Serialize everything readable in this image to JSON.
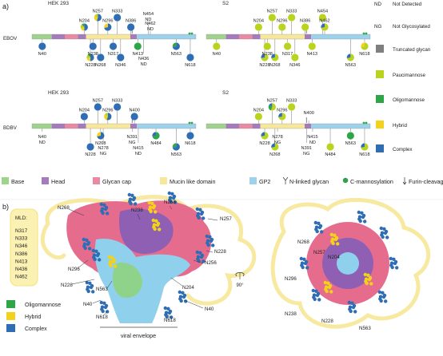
{
  "panel_a": {
    "label": "a)",
    "rows": [
      {
        "virus": "EBOV",
        "panels": [
          {
            "cell": "HEK 293",
            "sites": [
              {
                "id": "N40",
                "pos": "below",
                "pie": "C"
              },
              {
                "id": "N204",
                "pos": "above",
                "pie": "CHPO"
              },
              {
                "id": "N228",
                "pos": "below",
                "pie": "CHPO"
              },
              {
                "id": "N238",
                "pos": "below",
                "pie": "C"
              },
              {
                "id": "N257",
                "pos": "above",
                "pie": "CHP"
              },
              {
                "id": "N268",
                "pos": "below",
                "pie": "C"
              },
              {
                "id": "N296",
                "pos": "above",
                "pie": "CH"
              },
              {
                "id": "N317",
                "pos": "below",
                "pie": "C"
              },
              {
                "id": "N333",
                "pos": "above",
                "pie": "C"
              },
              {
                "id": "N346",
                "pos": "below",
                "pie": "C"
              },
              {
                "id": "N386",
                "pos": "above",
                "pie": "C"
              },
              {
                "id": "N413",
                "pos": "below",
                "pie": "O"
              },
              {
                "id": "N436",
                "pos": "below",
                "note": "ND"
              },
              {
                "id": "N454",
                "pos": "above",
                "note": "ND"
              },
              {
                "id": "N462",
                "pos": "above",
                "note": "ND"
              },
              {
                "id": "N563",
                "pos": "below",
                "pie": "CO"
              },
              {
                "id": "N618",
                "pos": "below",
                "pie": "C"
              }
            ]
          },
          {
            "cell": "S2",
            "sites": [
              {
                "id": "N40",
                "pos": "below",
                "pie": "P"
              },
              {
                "id": "N204",
                "pos": "above",
                "pie": "P"
              },
              {
                "id": "N228",
                "pos": "below",
                "pie": "PC"
              },
              {
                "id": "N238",
                "pos": "below",
                "pie": "P"
              },
              {
                "id": "N257",
                "pos": "above",
                "pie": "P"
              },
              {
                "id": "N268",
                "pos": "below",
                "pie": "PC"
              },
              {
                "id": "N296",
                "pos": "above",
                "pie": "P"
              },
              {
                "id": "N317",
                "pos": "below",
                "pie": "P"
              },
              {
                "id": "N333",
                "pos": "above",
                "pie": "P"
              },
              {
                "id": "N346",
                "pos": "below",
                "pie": "P"
              },
              {
                "id": "N386",
                "pos": "above",
                "pie": "P"
              },
              {
                "id": "N413",
                "pos": "below",
                "pie": "P"
              },
              {
                "id": "N454",
                "pos": "above",
                "pie": "P"
              },
              {
                "id": "N462",
                "pos": "above",
                "pie": "PC"
              },
              {
                "id": "N563",
                "pos": "below",
                "pie": "PC"
              },
              {
                "id": "N618",
                "pos": "below",
                "pie": "PH"
              }
            ]
          }
        ]
      },
      {
        "virus": "BDBV",
        "panels": [
          {
            "cell": "HEK 293",
            "sites": [
              {
                "id": "N40",
                "pos": "below",
                "note": "ND"
              },
              {
                "id": "N204",
                "pos": "above",
                "pie": "C"
              },
              {
                "id": "N228",
                "pos": "below",
                "pie": "C"
              },
              {
                "id": "N257",
                "pos": "above",
                "pie": "C"
              },
              {
                "id": "N268",
                "pos": "below",
                "pie": "CH"
              },
              {
                "id": "N278",
                "pos": "below",
                "note": "NG"
              },
              {
                "id": "N296",
                "pos": "above",
                "pie": "CHP"
              },
              {
                "id": "N333",
                "pos": "above",
                "pie": "C"
              },
              {
                "id": "N391",
                "pos": "below",
                "note": "NG"
              },
              {
                "id": "N400",
                "pos": "above",
                "pie": "C"
              },
              {
                "id": "N415",
                "pos": "below",
                "note": "ND"
              },
              {
                "id": "N484",
                "pos": "below",
                "pie": "OC"
              },
              {
                "id": "N563",
                "pos": "below",
                "pie": "CO"
              },
              {
                "id": "N618",
                "pos": "below",
                "pie": "C"
              }
            ]
          },
          {
            "cell": "S2",
            "sites": [
              {
                "id": "N204",
                "pos": "above",
                "pie": "P"
              },
              {
                "id": "N228",
                "pos": "below",
                "pie": "PC"
              },
              {
                "id": "N257",
                "pos": "above",
                "pie": "POC"
              },
              {
                "id": "N268",
                "pos": "below",
                "pie": "PC"
              },
              {
                "id": "N278",
                "pos": "below",
                "note": "NG"
              },
              {
                "id": "N296",
                "pos": "above",
                "pie": "PC"
              },
              {
                "id": "N333",
                "pos": "above",
                "pie": "P"
              },
              {
                "id": "N391",
                "pos": "below",
                "note": "NG"
              },
              {
                "id": "N400",
                "pos": "above",
                "note": ""
              },
              {
                "id": "N415",
                "pos": "below",
                "note": "ND"
              },
              {
                "id": "N484",
                "pos": "below",
                "pie": "P"
              },
              {
                "id": "N563",
                "pos": "below",
                "pie": "O"
              },
              {
                "id": "N618",
                "pos": "below",
                "pie": "PC"
              }
            ]
          }
        ]
      }
    ],
    "key": [
      {
        "abbr": "ND",
        "text": "Not Detected"
      },
      {
        "abbr": "NG",
        "text": "Not Glycosylated"
      },
      {
        "text": "Truncated glycan",
        "color": "#7f7f7f"
      },
      {
        "text": "Paucimannose",
        "color": "#b9d31e"
      },
      {
        "text": "Oligomannose",
        "color": "#2ea546"
      },
      {
        "text": "Hybrid",
        "color": "#f2d21b"
      },
      {
        "text": "Complex",
        "color": "#2f6db4"
      }
    ],
    "domain_legend": [
      {
        "text": "Base",
        "color": "#9fd38c"
      },
      {
        "text": "Head",
        "color": "#a57bbd"
      },
      {
        "text": "Glycan cap",
        "color": "#e98aa3"
      },
      {
        "text": "Mucin like domain",
        "color": "#f6e79a"
      },
      {
        "text": "GP2",
        "color": "#9dd2ec"
      },
      {
        "text": "N-linked glycan",
        "icon": "glycan-fork-icon"
      },
      {
        "text": "C-mannosylation",
        "icon": "c-mannosylation-dot-icon"
      },
      {
        "text": "Furin-cleavage",
        "icon": "furin-arrow-icon"
      }
    ]
  },
  "panel_b": {
    "label": "b)",
    "mld_box": {
      "title": "MLD:",
      "sites": [
        "N317",
        "N333",
        "N346",
        "N386",
        "N413",
        "N436",
        "N462"
      ]
    },
    "left_labels": [
      "N268",
      "N238",
      "N268",
      "N257",
      "N228",
      "N296",
      "N256",
      "N228",
      "N563",
      "N204",
      "N40",
      "N618",
      "N618",
      "N40"
    ],
    "right_labels": [
      "N268",
      "N257",
      "N204",
      "N296",
      "N238",
      "N228",
      "N563"
    ],
    "rotation": "90°",
    "envelope": "viral envelope",
    "legend": [
      {
        "text": "Oligomannose",
        "color": "#2ea546"
      },
      {
        "text": "Hybrid",
        "color": "#f2d21b"
      },
      {
        "text": "Complex",
        "color": "#2f6db4"
      }
    ]
  },
  "colors": {
    "complex": "#2f6db4",
    "oligomannose": "#2ea546",
    "hybrid": "#f2d21b",
    "paucimannose": "#b9d31e",
    "truncated": "#7f7f7f",
    "base": "#9fd38c",
    "head": "#a57bbd",
    "cap": "#e98aa3",
    "mucin": "#f6e79a",
    "gp2": "#9dd2ec"
  }
}
